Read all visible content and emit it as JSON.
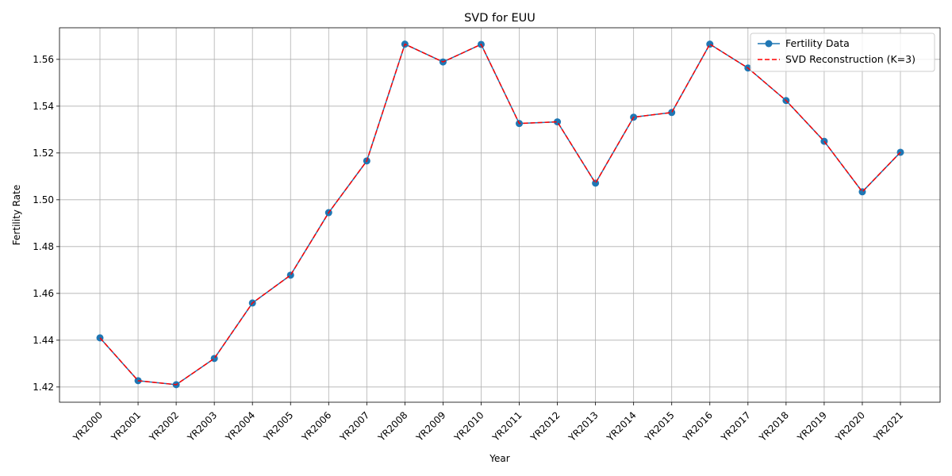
{
  "chart_data": {
    "type": "line",
    "title": "SVD for EUU",
    "xlabel": "Year",
    "ylabel": "Fertility Rate",
    "categories": [
      "YR2000",
      "YR2001",
      "YR2002",
      "YR2003",
      "YR2004",
      "YR2005",
      "YR2006",
      "YR2007",
      "YR2008",
      "YR2009",
      "YR2010",
      "YR2011",
      "YR2012",
      "YR2013",
      "YR2014",
      "YR2015",
      "YR2016",
      "YR2017",
      "YR2018",
      "YR2019",
      "YR2020",
      "YR2021"
    ],
    "ylim": [
      1.4135,
      1.5735
    ],
    "yticks": [
      "1.42",
      "1.44",
      "1.46",
      "1.48",
      "1.50",
      "1.52",
      "1.54",
      "1.56"
    ],
    "grid": true,
    "legend_position": "top-right",
    "series": [
      {
        "name": "Fertility Data",
        "style": "solid line with circle markers",
        "color": "#1f77b4",
        "values": [
          1.441,
          1.4227,
          1.421,
          1.4322,
          1.4559,
          1.4678,
          1.4945,
          1.5166,
          1.5665,
          1.5589,
          1.5664,
          1.5326,
          1.5333,
          1.5071,
          1.5353,
          1.5373,
          1.5665,
          1.5563,
          1.5424,
          1.525,
          1.5034,
          1.5203
        ]
      },
      {
        "name": "SVD Reconstruction (K=3)",
        "style": "dashed line",
        "color": "#ff0000",
        "values": [
          1.441,
          1.4227,
          1.421,
          1.4322,
          1.4559,
          1.4678,
          1.4945,
          1.5166,
          1.5665,
          1.5589,
          1.5664,
          1.5326,
          1.5333,
          1.5071,
          1.5353,
          1.5373,
          1.5665,
          1.5563,
          1.5424,
          1.525,
          1.5034,
          1.5203
        ]
      }
    ]
  }
}
